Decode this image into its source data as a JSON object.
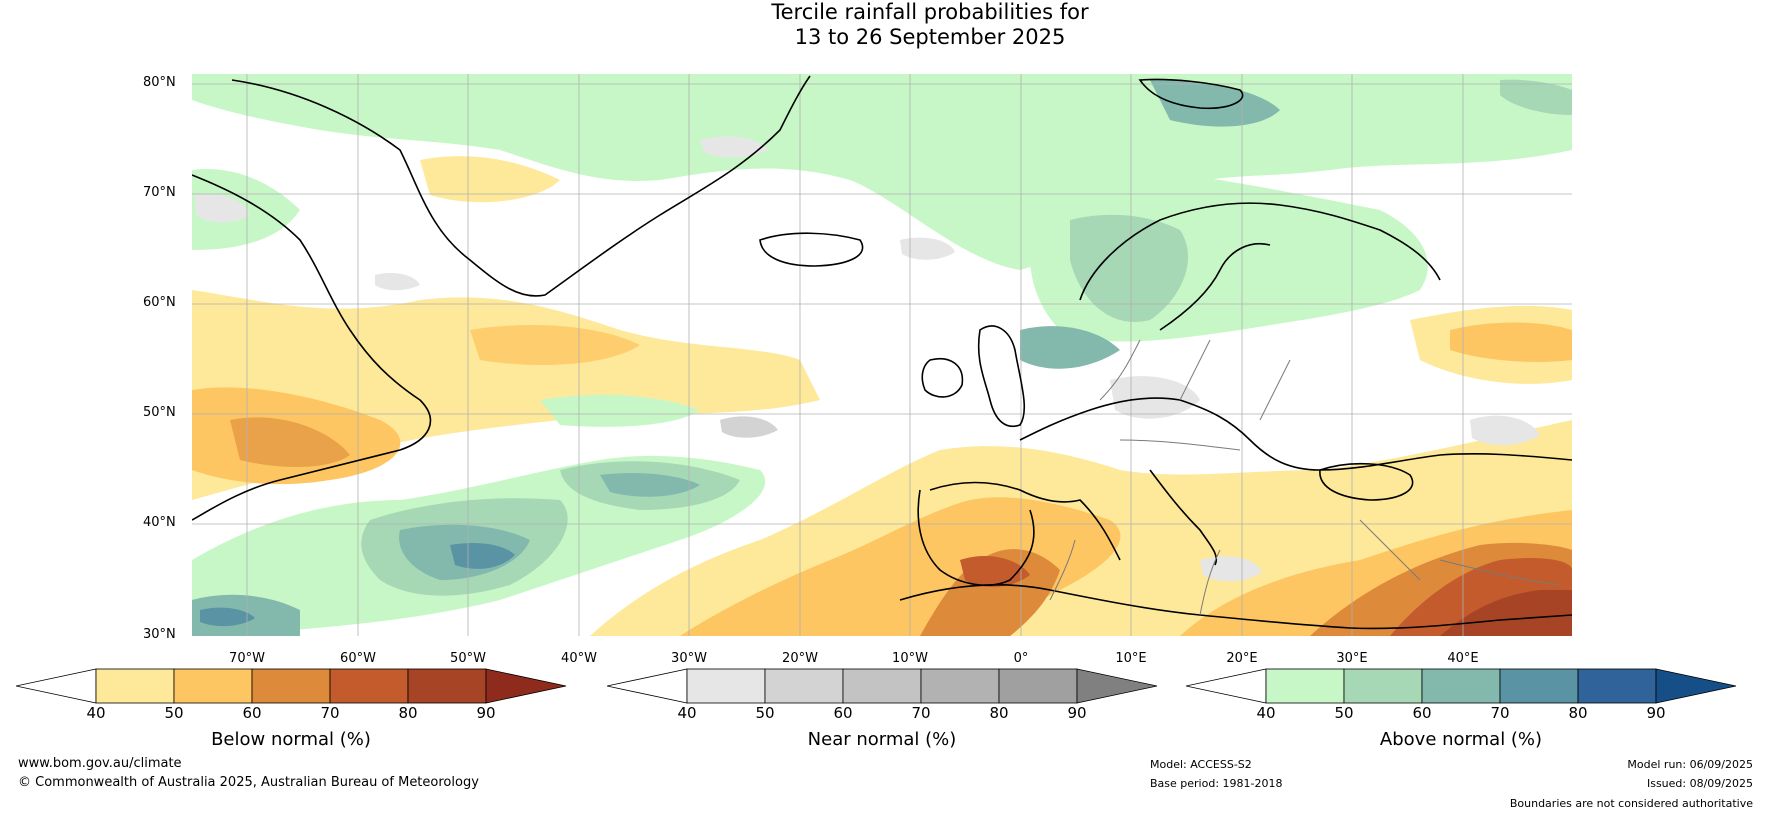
{
  "title": {
    "line1": "Tercile rainfall probabilities for",
    "line2": "13 to 26 September 2025"
  },
  "map": {
    "lat_labels": [
      "80°N",
      "70°N",
      "60°N",
      "50°N",
      "40°N",
      "30°N"
    ],
    "lon_labels": [
      "70°W",
      "60°W",
      "50°W",
      "40°W",
      "30°W",
      "20°W",
      "10°W",
      "0°",
      "10°E",
      "20°E",
      "30°E",
      "40°E"
    ],
    "lat_range": [
      30,
      81
    ],
    "lon_range": [
      -80,
      45
    ]
  },
  "legends": [
    {
      "title": "Below normal (%)",
      "ticks": [
        "40",
        "50",
        "60",
        "70",
        "80",
        "90"
      ],
      "colors": [
        "#ffffff",
        "#fee99a",
        "#fdc663",
        "#dd8a3a",
        "#c35b2c",
        "#a84426",
        "#8f2b1c"
      ]
    },
    {
      "title": "Near normal (%)",
      "ticks": [
        "40",
        "50",
        "60",
        "70",
        "80",
        "90"
      ],
      "colors": [
        "#ffffff",
        "#e6e6e6",
        "#d3d3d3",
        "#c3c3c3",
        "#b2b2b2",
        "#a0a0a0",
        "#808080"
      ]
    },
    {
      "title": "Above normal (%)",
      "ticks": [
        "40",
        "50",
        "60",
        "70",
        "80",
        "90"
      ],
      "colors": [
        "#ffffff",
        "#c8f7c7",
        "#a6d8b6",
        "#83b9ad",
        "#5a93a3",
        "#2f6399",
        "#164f87"
      ]
    }
  ],
  "footer": {
    "website": "www.bom.gov.au/climate",
    "copyright": "© Commonwealth of Australia 2025, Australian Bureau of Meteorology",
    "model": "Model: ACCESS-S2",
    "base_period": "Base period: 1981-2018",
    "model_run": "Model run: 06/09/2025",
    "issued": "Issued: 08/09/2025",
    "disclaimer": "Boundaries are not considered authoritative"
  }
}
